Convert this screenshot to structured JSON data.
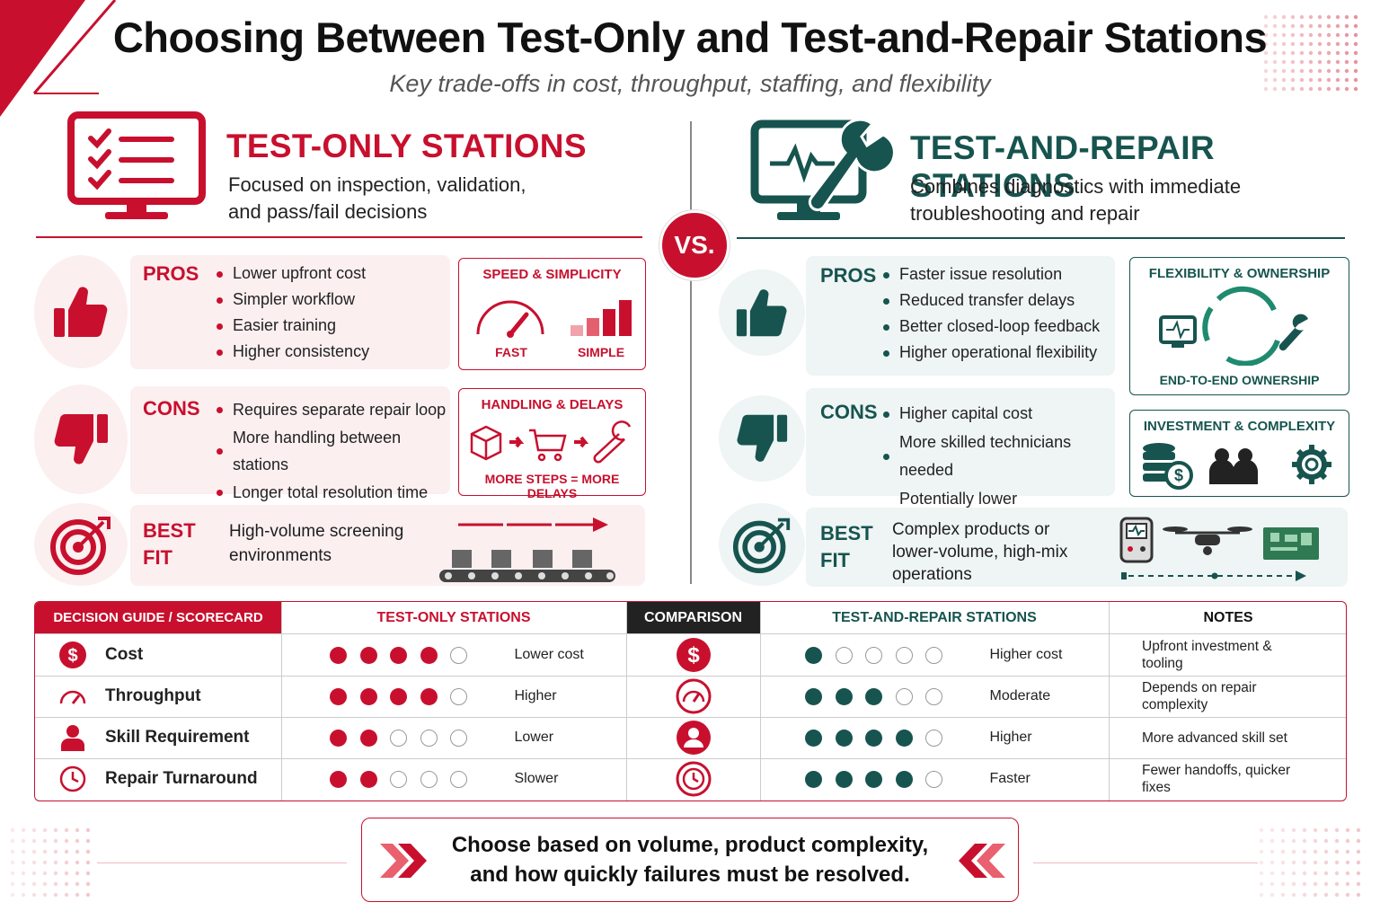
{
  "header": {
    "title": "Choosing Between Test-Only and Test-and-Repair Stations",
    "subtitle": "Key trade-offs in cost, throughput, staffing, and flexibility"
  },
  "vs": "VS.",
  "left": {
    "title": "TEST-ONLY STATIONS",
    "description": "Focused on inspection, validation, and pass/fail decisions",
    "pros": {
      "label": "PROS",
      "items": [
        "Lower upfront cost",
        "Simpler workflow",
        "Easier training",
        "Higher consistency"
      ]
    },
    "pros_card": {
      "title": "SPEED & SIMPLICITY",
      "labels": [
        "FAST",
        "SIMPLE"
      ]
    },
    "cons": {
      "label": "CONS",
      "items": [
        "Requires separate repair loop",
        "More handling between stations",
        "Longer total resolution time"
      ]
    },
    "cons_card": {
      "title": "HANDLING & DELAYS",
      "caption": "MORE STEPS = MORE DELAYS"
    },
    "best_fit": {
      "label": "BEST FIT",
      "text": "High-volume screening environments"
    }
  },
  "right": {
    "title": "TEST-AND-REPAIR STATIONS",
    "description": "Combines diagnostics with immediate troubleshooting and repair",
    "pros": {
      "label": "PROS",
      "items": [
        "Faster issue resolution",
        "Reduced transfer delays",
        "Better closed-loop feedback",
        "Higher operational flexibility"
      ]
    },
    "pros_card": {
      "title": "FLEXIBILITY & OWNERSHIP",
      "caption": "END-TO-END OWNERSHIP"
    },
    "cons": {
      "label": "CONS",
      "items": [
        "Higher capital cost",
        "More skilled technicians needed",
        "Potentially lower standardization"
      ]
    },
    "cons_card": {
      "title": "INVESTMENT & COMPLEXITY"
    },
    "best_fit": {
      "label": "BEST FIT",
      "text": "Complex products or lower-volume, high-mix operations"
    }
  },
  "scorecard": {
    "headers": [
      "DECISION GUIDE / SCORECARD",
      "TEST-ONLY STATIONS",
      "COMPARISON",
      "TEST-AND-REPAIR STATIONS",
      "NOTES"
    ],
    "rating_max": 5,
    "rows": [
      {
        "criterion": "Cost",
        "test_only": 4,
        "test_only_label": "Lower cost",
        "test_repair": 1,
        "test_repair_label": "Higher cost",
        "note": "Upfront investment & tooling"
      },
      {
        "criterion": "Throughput",
        "test_only": 4,
        "test_only_label": "Higher",
        "test_repair": 3,
        "test_repair_label": "Moderate",
        "note": "Depends on repair complexity"
      },
      {
        "criterion": "Skill Requirement",
        "test_only": 2,
        "test_only_label": "Lower",
        "test_repair": 4,
        "test_repair_label": "Higher",
        "note": "More advanced skill set"
      },
      {
        "criterion": "Repair Turnaround",
        "test_only": 2,
        "test_only_label": "Slower",
        "test_repair": 4,
        "test_repair_label": "Faster",
        "note": "Fewer handoffs, quicker fixes"
      }
    ]
  },
  "footer": "Choose based on volume, product complexity, and how quickly failures must be resolved."
}
